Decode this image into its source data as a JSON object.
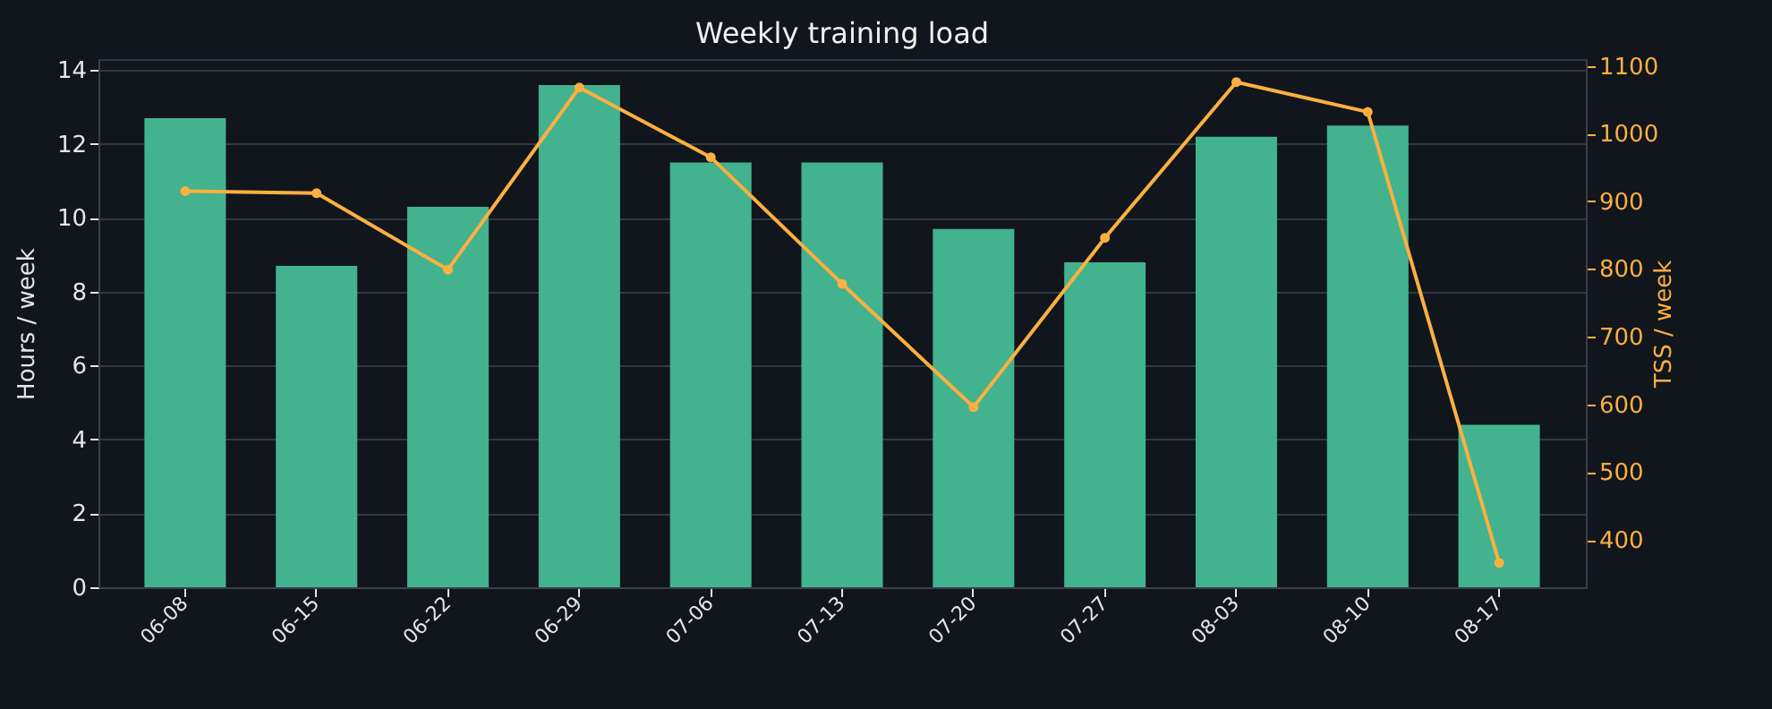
{
  "chart_data": {
    "type": "bar",
    "title": "Weekly training load",
    "ylabel": "Hours / week",
    "y2label": "TSS / week",
    "categories": [
      "06-08",
      "06-15",
      "06-22",
      "06-29",
      "07-06",
      "07-13",
      "07-20",
      "07-27",
      "08-03",
      "08-10",
      "08-17"
    ],
    "series": [
      {
        "color": "#43b28e",
        "values": [
          12.7,
          8.7,
          10.3,
          13.6,
          11.5,
          11.5,
          9.7,
          8.8,
          12.2,
          12.5,
          4.4
        ]
      },
      {
        "type": "line",
        "axis": "y2",
        "color": "#fbb040",
        "values": [
          915,
          912,
          799,
          1068,
          965,
          778,
          596,
          846,
          1076,
          1032,
          366
        ]
      }
    ],
    "ylim": [
      0,
      14.3
    ],
    "yticks": [
      0,
      2,
      4,
      6,
      8,
      10,
      12,
      14
    ],
    "y2lim": [
      330,
      1110
    ],
    "y2ticks": [
      400,
      500,
      600,
      700,
      800,
      900,
      1000,
      1100
    ],
    "grid": "y",
    "marker": "circle",
    "line_style": "solid"
  }
}
